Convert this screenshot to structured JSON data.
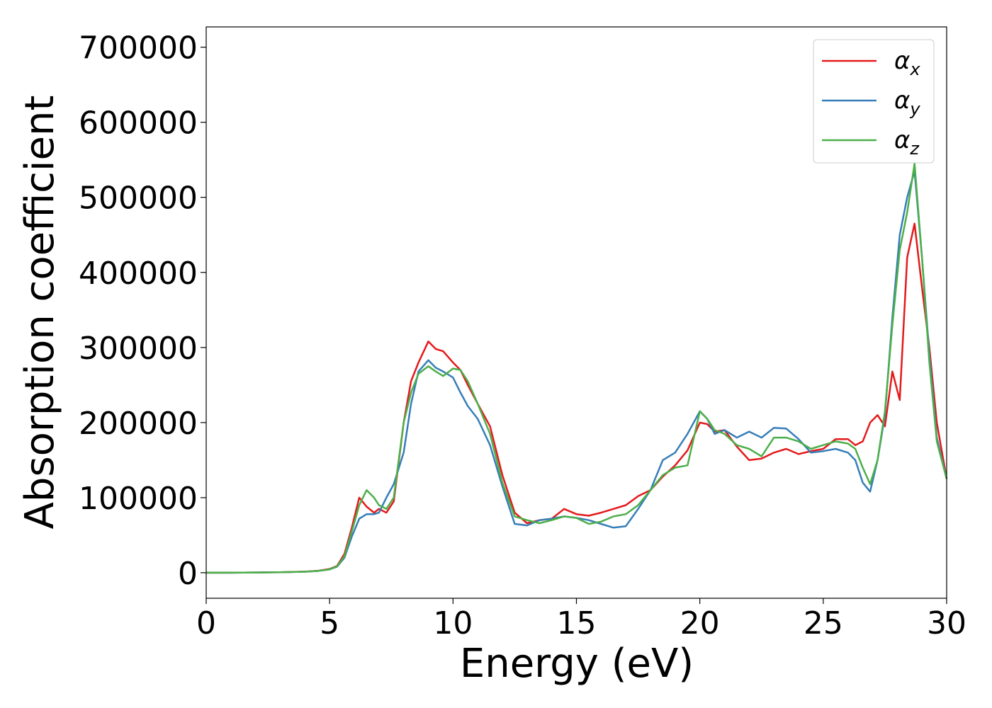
{
  "chart_data": {
    "type": "line",
    "xlabel": "Energy (eV)",
    "ylabel": "Absorption coefficient",
    "xlim": [
      0,
      30
    ],
    "ylim": [
      -34000,
      727000
    ],
    "xticks": [
      "0",
      "5",
      "10",
      "15",
      "20",
      "25",
      "30"
    ],
    "yticks": [
      "0",
      "100000",
      "200000",
      "300000",
      "400000",
      "500000",
      "600000",
      "700000"
    ],
    "grid": false,
    "legend_position": "top-right",
    "x": [
      0,
      1,
      2,
      3,
      4,
      4.5,
      5,
      5.3,
      5.6,
      5.9,
      6.2,
      6.5,
      6.8,
      7.0,
      7.3,
      7.6,
      8.0,
      8.3,
      8.6,
      9.0,
      9.3,
      9.6,
      10.0,
      10.3,
      10.6,
      11.0,
      11.5,
      12.0,
      12.5,
      13.0,
      13.5,
      14.0,
      14.5,
      15.0,
      15.5,
      16.0,
      16.5,
      17.0,
      17.5,
      18.0,
      18.5,
      19.0,
      19.5,
      20.0,
      20.3,
      20.6,
      21.0,
      21.5,
      22.0,
      22.5,
      23.0,
      23.5,
      24.0,
      24.5,
      25.0,
      25.5,
      26.0,
      26.3,
      26.6,
      26.9,
      27.2,
      27.5,
      27.8,
      28.1,
      28.4,
      28.7,
      29.0,
      29.3,
      29.6,
      30.0
    ],
    "series": [
      {
        "name": "α_x",
        "color": "#e41a1c",
        "values": [
          0,
          0,
          300,
          600,
          1500,
          2500,
          5000,
          9000,
          25000,
          60000,
          100000,
          88000,
          80000,
          85000,
          80000,
          95000,
          200000,
          255000,
          280000,
          308000,
          298000,
          295000,
          280000,
          270000,
          250000,
          225000,
          195000,
          130000,
          80000,
          66000,
          70000,
          72000,
          85000,
          78000,
          76000,
          80000,
          85000,
          90000,
          102000,
          110000,
          128000,
          143000,
          163000,
          200000,
          198000,
          188000,
          190000,
          168000,
          150000,
          152000,
          160000,
          165000,
          158000,
          162000,
          165000,
          178000,
          178000,
          170000,
          175000,
          200000,
          210000,
          195000,
          268000,
          230000,
          420000,
          465000,
          380000,
          300000,
          200000,
          125000
        ]
      },
      {
        "name": "α_y",
        "color": "#377eb8",
        "values": [
          0,
          0,
          300,
          600,
          1400,
          2300,
          4500,
          8000,
          20000,
          48000,
          72000,
          78000,
          78000,
          80000,
          100000,
          118000,
          160000,
          225000,
          268000,
          283000,
          273000,
          268000,
          260000,
          240000,
          222000,
          205000,
          170000,
          115000,
          65000,
          63000,
          70000,
          72000,
          75000,
          73000,
          70000,
          65000,
          60000,
          62000,
          85000,
          110000,
          150000,
          160000,
          185000,
          215000,
          205000,
          185000,
          190000,
          180000,
          188000,
          180000,
          193000,
          192000,
          178000,
          160000,
          162000,
          165000,
          160000,
          150000,
          120000,
          108000,
          150000,
          210000,
          340000,
          450000,
          500000,
          535000,
          420000,
          290000,
          180000,
          125000
        ]
      },
      {
        "name": "α_z",
        "color": "#4daf4a",
        "values": [
          0,
          0,
          300,
          600,
          1400,
          2300,
          4500,
          8500,
          22000,
          55000,
          90000,
          110000,
          100000,
          90000,
          85000,
          100000,
          200000,
          240000,
          265000,
          275000,
          268000,
          262000,
          272000,
          270000,
          255000,
          225000,
          185000,
          120000,
          75000,
          70000,
          66000,
          70000,
          75000,
          73000,
          65000,
          68000,
          75000,
          78000,
          90000,
          110000,
          130000,
          140000,
          143000,
          215000,
          205000,
          190000,
          185000,
          170000,
          165000,
          155000,
          180000,
          180000,
          175000,
          165000,
          170000,
          175000,
          172000,
          165000,
          140000,
          118000,
          150000,
          215000,
          330000,
          430000,
          480000,
          545000,
          420000,
          280000,
          175000,
          125000
        ]
      }
    ]
  }
}
